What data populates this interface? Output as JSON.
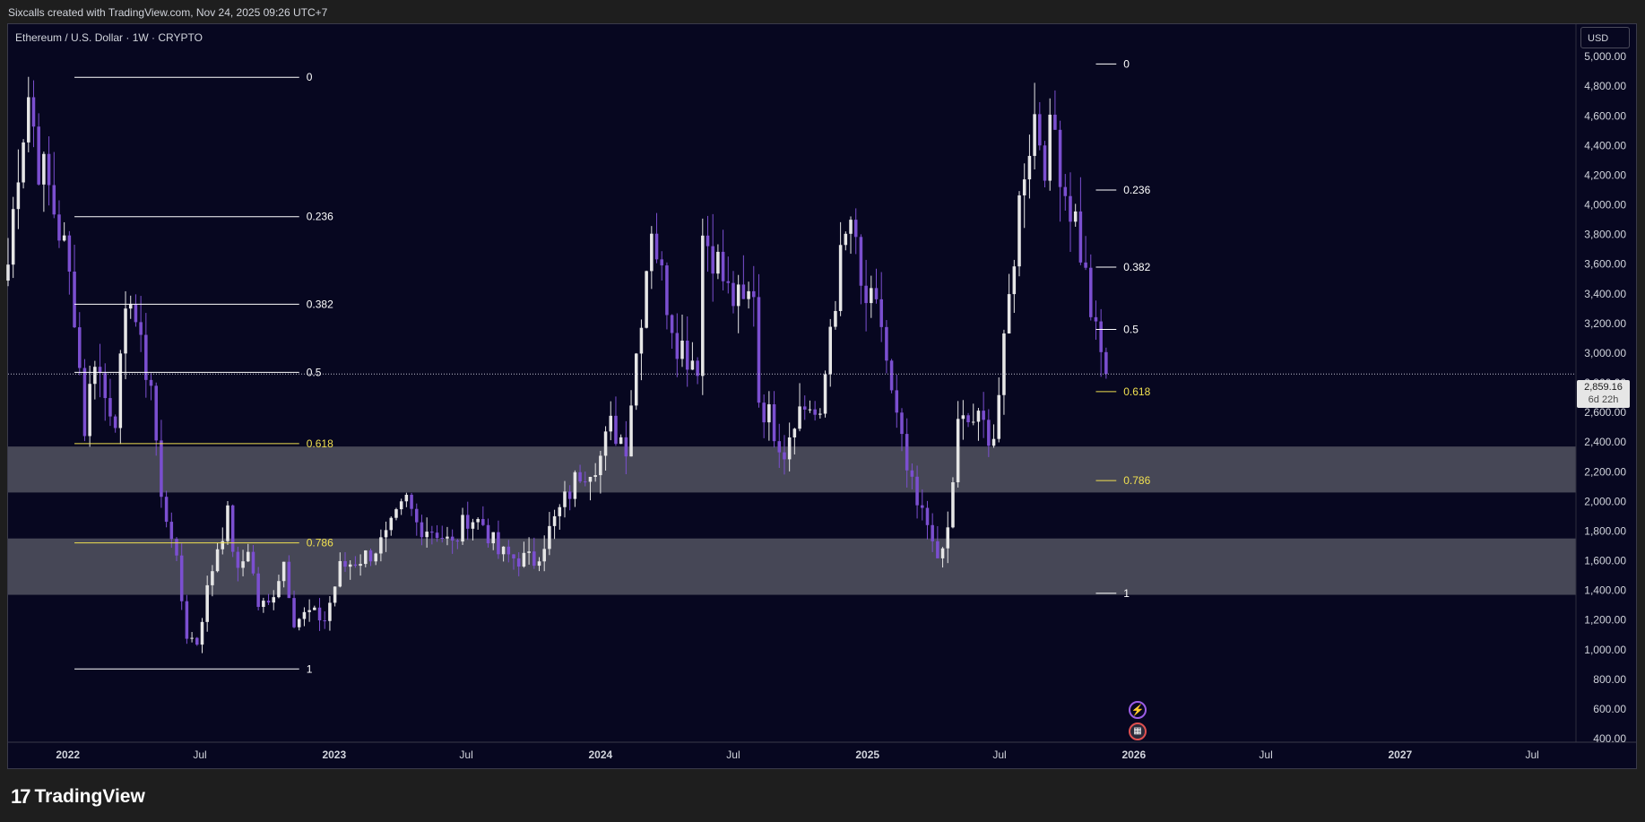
{
  "header": {
    "attribution": "Sixcalls created with TradingView.com, Nov 24, 2025 09:26 UTC+7"
  },
  "symbol": {
    "title": "Ethereum / U.S. Dollar · 1W · CRYPTO"
  },
  "currency_button": "USD",
  "price_tag": {
    "price": "2,859.16",
    "countdown": "6d 22h"
  },
  "footer": {
    "brand": "TradingView",
    "brand_icon": "tradingview-logo-icon"
  },
  "events": {
    "icons": [
      "lightning-event-icon",
      "us-flag-event-icon"
    ]
  },
  "colors": {
    "background": "#070720",
    "bull": "#e6e6e6",
    "bear": "#7b4fd0",
    "zone": "#4a4b5a",
    "fib": "#ffffff",
    "fib_golden": "#f0e050"
  },
  "chart_data": {
    "type": "candlestick",
    "title": "Ethereum / U.S. Dollar · 1W · CRYPTO",
    "ylabel": "USD",
    "ylim": [
      400,
      5200
    ],
    "y_ticks": [
      400,
      600,
      800,
      1000,
      1200,
      1400,
      1600,
      1800,
      2000,
      2200,
      2400,
      2600,
      2800,
      3000,
      3200,
      3400,
      3600,
      3800,
      4000,
      4200,
      4400,
      4600,
      4800,
      5000
    ],
    "y_tick_labels": [
      "400.00",
      "600.00",
      "800.00",
      "1,000.00",
      "1,200.00",
      "1,400.00",
      "1,600.00",
      "1,800.00",
      "2,000.00",
      "2,200.00",
      "2,400.00",
      "2,600.00",
      "2,800.00",
      "3,000.00",
      "3,200.00",
      "3,400.00",
      "3,600.00",
      "3,800.00",
      "4,000.00",
      "4,200.00",
      "4,400.00",
      "4,600.00",
      "4,800.00",
      "5,000.00"
    ],
    "x_range": [
      "2021-10-11",
      "2027-08-30"
    ],
    "x_ticks": [
      {
        "date": "2022-01-01",
        "label": "2022",
        "major": true
      },
      {
        "date": "2022-07-01",
        "label": "Jul",
        "major": false
      },
      {
        "date": "2023-01-01",
        "label": "2023",
        "major": true
      },
      {
        "date": "2023-07-01",
        "label": "Jul",
        "major": false
      },
      {
        "date": "2024-01-01",
        "label": "2024",
        "major": true
      },
      {
        "date": "2024-07-01",
        "label": "Jul",
        "major": false
      },
      {
        "date": "2025-01-01",
        "label": "2025",
        "major": true
      },
      {
        "date": "2025-07-01",
        "label": "Jul",
        "major": false
      },
      {
        "date": "2026-01-01",
        "label": "2026",
        "major": true
      },
      {
        "date": "2026-07-01",
        "label": "Jul",
        "major": false
      },
      {
        "date": "2027-01-01",
        "label": "2027",
        "major": true
      },
      {
        "date": "2027-07-01",
        "label": "Jul",
        "major": false
      }
    ],
    "current_price": 2859.16,
    "zones": [
      {
        "from": 2060,
        "to": 2370
      },
      {
        "from": 1370,
        "to": 1750
      }
    ],
    "fib_sets": [
      {
        "start": "2022-01-10",
        "end": "2022-11-14",
        "levels": [
          {
            "ratio": "0",
            "price": 4860
          },
          {
            "ratio": "0.236",
            "price": 3920
          },
          {
            "ratio": "0.382",
            "price": 3330
          },
          {
            "ratio": "0.5",
            "price": 2870
          },
          {
            "ratio": "0.618",
            "price": 2390
          },
          {
            "ratio": "0.786",
            "price": 1720
          },
          {
            "ratio": "1",
            "price": 870
          }
        ]
      },
      {
        "start": "2025-11-10",
        "end": "2025-12-08",
        "levels": [
          {
            "ratio": "0",
            "price": 4950
          },
          {
            "ratio": "0.236",
            "price": 4100
          },
          {
            "ratio": "0.382",
            "price": 3580
          },
          {
            "ratio": "0.5",
            "price": 3160
          },
          {
            "ratio": "0.618",
            "price": 2740
          },
          {
            "ratio": "0.786",
            "price": 2140
          },
          {
            "ratio": "1",
            "price": 1380
          }
        ]
      }
    ],
    "anchors": [
      [
        "2021-10-11",
        3600
      ],
      [
        "2021-10-25",
        4300
      ],
      [
        "2021-11-08",
        4750
      ],
      [
        "2021-11-22",
        4300
      ],
      [
        "2021-12-06",
        4100
      ],
      [
        "2021-12-27",
        3700
      ],
      [
        "2022-01-10",
        3300
      ],
      [
        "2022-01-24",
        2500
      ],
      [
        "2022-02-07",
        3000
      ],
      [
        "2022-02-21",
        2700
      ],
      [
        "2022-03-07",
        2600
      ],
      [
        "2022-03-28",
        3450
      ],
      [
        "2022-04-11",
        3000
      ],
      [
        "2022-04-25",
        2800
      ],
      [
        "2022-05-09",
        2000
      ],
      [
        "2022-05-23",
        1800
      ],
      [
        "2022-06-13",
        1100
      ],
      [
        "2022-06-27",
        1050
      ],
      [
        "2022-07-11",
        1400
      ],
      [
        "2022-07-25",
        1700
      ],
      [
        "2022-08-08",
        1900
      ],
      [
        "2022-08-22",
        1500
      ],
      [
        "2022-09-05",
        1700
      ],
      [
        "2022-09-19",
        1300
      ],
      [
        "2022-10-03",
        1300
      ],
      [
        "2022-10-24",
        1600
      ],
      [
        "2022-11-07",
        1200
      ],
      [
        "2022-11-28",
        1250
      ],
      [
        "2022-12-19",
        1200
      ],
      [
        "2023-01-09",
        1550
      ],
      [
        "2023-01-30",
        1600
      ],
      [
        "2023-02-20",
        1650
      ],
      [
        "2023-03-13",
        1750
      ],
      [
        "2023-04-10",
        2000
      ],
      [
        "2023-04-24",
        1850
      ],
      [
        "2023-05-22",
        1800
      ],
      [
        "2023-06-12",
        1700
      ],
      [
        "2023-07-03",
        1900
      ],
      [
        "2023-07-24",
        1850
      ],
      [
        "2023-08-14",
        1650
      ],
      [
        "2023-09-04",
        1620
      ],
      [
        "2023-10-02",
        1600
      ],
      [
        "2023-10-23",
        1800
      ],
      [
        "2023-11-13",
        2000
      ],
      [
        "2023-12-04",
        2200
      ],
      [
        "2024-01-01",
        2300
      ],
      [
        "2024-01-15",
        2500
      ],
      [
        "2024-02-05",
        2400
      ],
      [
        "2024-02-26",
        3300
      ],
      [
        "2024-03-11",
        3900
      ],
      [
        "2024-03-25",
        3500
      ],
      [
        "2024-04-15",
        3100
      ],
      [
        "2024-04-29",
        3000
      ],
      [
        "2024-05-13",
        2950
      ],
      [
        "2024-05-20",
        3800
      ],
      [
        "2024-06-03",
        3700
      ],
      [
        "2024-06-24",
        3400
      ],
      [
        "2024-07-15",
        3300
      ],
      [
        "2024-07-29",
        3450
      ],
      [
        "2024-08-05",
        2700
      ],
      [
        "2024-08-26",
        2500
      ],
      [
        "2024-09-09",
        2350
      ],
      [
        "2024-09-23",
        2600
      ],
      [
        "2024-10-14",
        2650
      ],
      [
        "2024-10-28",
        2500
      ],
      [
        "2024-11-11",
        3200
      ],
      [
        "2024-11-25",
        3600
      ],
      [
        "2024-12-09",
        3900
      ],
      [
        "2024-12-23",
        3400
      ],
      [
        "2025-01-06",
        3300
      ],
      [
        "2025-01-20",
        3200
      ],
      [
        "2025-02-03",
        2700
      ],
      [
        "2025-02-24",
        2200
      ],
      [
        "2025-03-10",
        1950
      ],
      [
        "2025-03-31",
        1800
      ],
      [
        "2025-04-07",
        1550
      ],
      [
        "2025-04-21",
        1800
      ],
      [
        "2025-05-05",
        2500
      ],
      [
        "2025-05-26",
        2550
      ],
      [
        "2025-06-09",
        2500
      ],
      [
        "2025-06-23",
        2450
      ],
      [
        "2025-07-07",
        3000
      ],
      [
        "2025-07-21",
        3700
      ],
      [
        "2025-08-04",
        4300
      ],
      [
        "2025-08-18",
        4600
      ],
      [
        "2025-09-01",
        4350
      ],
      [
        "2025-09-15",
        4500
      ],
      [
        "2025-09-29",
        4100
      ],
      [
        "2025-10-13",
        3900
      ],
      [
        "2025-10-27",
        3500
      ],
      [
        "2025-11-10",
        3100
      ],
      [
        "2025-11-24",
        2860
      ]
    ]
  }
}
